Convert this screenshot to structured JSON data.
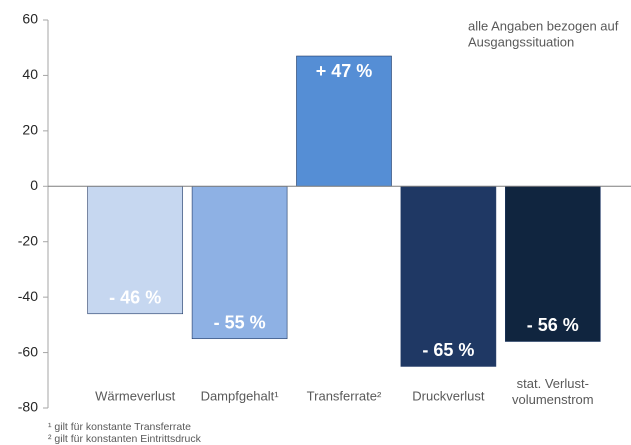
{
  "chart_data": {
    "type": "bar",
    "categories": [
      "Wärmeverlust",
      "Dampfgehalt¹",
      "Transferrate²",
      "Druckverlust",
      "stat. Verlust- volumenstrom"
    ],
    "values": [
      -46,
      -55,
      47,
      -65,
      -56
    ],
    "value_labels": [
      "- 46 %",
      "- 55 %",
      "+ 47 %",
      "- 65 %",
      "- 56 %"
    ],
    "colors": [
      "#c6d7f0",
      "#8eb1e4",
      "#558ed5",
      "#1f3864",
      "#10253f"
    ],
    "ylim": [
      -80,
      60
    ],
    "yticks": [
      -80,
      -60,
      -40,
      -20,
      0,
      20,
      40,
      60
    ],
    "annotation": [
      "alle Angaben bezogen auf",
      "Ausgangssituation"
    ],
    "footnotes": [
      "¹ gilt für konstante Transferrate",
      "² gilt für konstanten Eintrittsdruck"
    ]
  }
}
